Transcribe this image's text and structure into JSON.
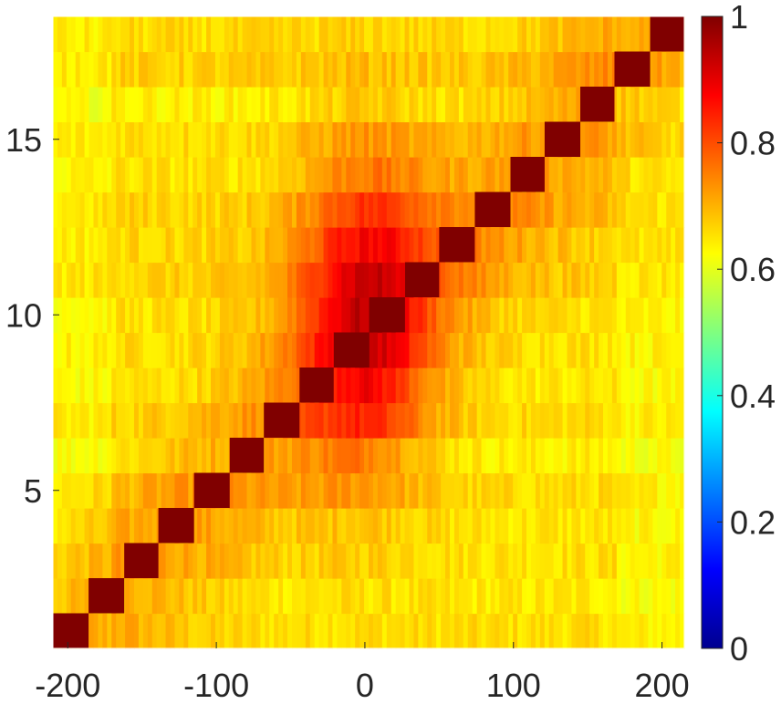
{
  "chart_data": {
    "type": "heatmap",
    "title": "",
    "xlabel": "",
    "ylabel": "",
    "x_range": [
      -210,
      215
    ],
    "y_range": [
      0.5,
      18.5
    ],
    "rows": 18,
    "xticks": [
      -200,
      -100,
      0,
      100,
      200
    ],
    "xtick_labels": [
      "-200",
      "-100",
      "0",
      "100",
      "200"
    ],
    "yticks": [
      5,
      10,
      15
    ],
    "ytick_labels": [
      "5",
      "10",
      "15"
    ],
    "colorbar": {
      "range": [
        0,
        1
      ],
      "ticks": [
        0,
        0.2,
        0.4,
        0.6,
        0.8,
        1
      ],
      "tick_labels": [
        "0",
        "0.2",
        "0.4",
        "0.6",
        "0.8",
        "1"
      ],
      "colormap": "jet"
    },
    "diagonal_value": 1,
    "diagonal_blocks": [
      {
        "row": 1,
        "x_start": -210,
        "x_end": -186
      },
      {
        "row": 2,
        "x_start": -186,
        "x_end": -162
      },
      {
        "row": 3,
        "x_start": -162,
        "x_end": -139
      },
      {
        "row": 4,
        "x_start": -139,
        "x_end": -115
      },
      {
        "row": 5,
        "x_start": -115,
        "x_end": -91
      },
      {
        "row": 6,
        "x_start": -91,
        "x_end": -68
      },
      {
        "row": 7,
        "x_start": -68,
        "x_end": -44
      },
      {
        "row": 8,
        "x_start": -44,
        "x_end": -21
      },
      {
        "row": 9,
        "x_start": -21,
        "x_end": 3
      },
      {
        "row": 10,
        "x_start": 3,
        "x_end": 27
      },
      {
        "row": 11,
        "x_start": 27,
        "x_end": 50
      },
      {
        "row": 12,
        "x_start": 50,
        "x_end": 74
      },
      {
        "row": 13,
        "x_start": 74,
        "x_end": 98
      },
      {
        "row": 14,
        "x_start": 98,
        "x_end": 121
      },
      {
        "row": 15,
        "x_start": 121,
        "x_end": 145
      },
      {
        "row": 16,
        "x_start": 145,
        "x_end": 168
      },
      {
        "row": 17,
        "x_start": 168,
        "x_end": 192
      },
      {
        "row": 18,
        "x_start": 192,
        "x_end": 215
      }
    ],
    "background_level": 0.65,
    "peak_level": 0.85
  }
}
